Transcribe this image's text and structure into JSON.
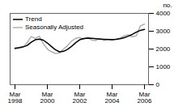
{
  "chart_data": {
    "type": "line",
    "ylabel": "no.",
    "categories": [
      "Mar\n1998",
      null,
      null,
      null,
      null,
      null,
      null,
      null,
      "Mar\n2000",
      null,
      null,
      null,
      null,
      null,
      null,
      null,
      "Mar\n2002",
      null,
      null,
      null,
      null,
      null,
      null,
      null,
      "Mar\n2004",
      null,
      null,
      null,
      null,
      null,
      null,
      null,
      "Mar\n2006"
    ],
    "ylim": [
      0,
      4000
    ],
    "yticks": [
      0,
      1000,
      2000,
      3000,
      4000
    ],
    "grid": false,
    "legend": "upper left",
    "series": [
      {
        "name": "Trend",
        "color": "#000000",
        "values": [
          2050,
          2080,
          2120,
          2200,
          2380,
          2520,
          2560,
          2500,
          2340,
          2140,
          1960,
          1840,
          1870,
          1980,
          2150,
          2360,
          2520,
          2590,
          2610,
          2600,
          2580,
          2560,
          2545,
          2530,
          2530,
          2545,
          2580,
          2640,
          2720,
          2820,
          2950,
          3050,
          3100
        ]
      },
      {
        "name": "Seasonally Adjusted",
        "color": "#b0b0b0",
        "values": [
          2000,
          2050,
          2100,
          2350,
          2700,
          2600,
          2720,
          2300,
          2000,
          1850,
          1750,
          1780,
          2000,
          2200,
          2450,
          2600,
          2650,
          2550,
          2650,
          2500,
          2480,
          2600,
          2480,
          2560,
          2480,
          2560,
          2620,
          2740,
          2800,
          2680,
          2750,
          3300,
          3400
        ]
      }
    ]
  }
}
